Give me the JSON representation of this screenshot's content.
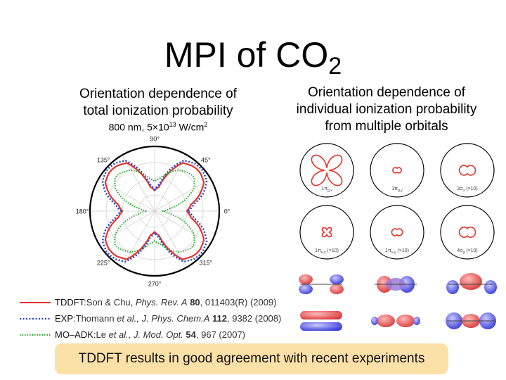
{
  "slide": {
    "title_main": "MPI of CO",
    "title_subscript": "2",
    "left_heading": [
      "Orientation dependence of",
      "total ionization probability"
    ],
    "conditions": {
      "pre": "800 nm, 5×10",
      "sup": "13",
      "post": " W/cm",
      "sup2": "2"
    },
    "right_heading": [
      "Orientation dependence of",
      "individual ionization probability",
      "from multiple orbitals"
    ],
    "summary": "TDDFT results in good agreement with recent experiments"
  },
  "legend": [
    {
      "label": "TDDFT:",
      "ref_pre": " Son & Chu, ",
      "journal": "Phys. Rev. A",
      "volume": " 80",
      "ref_post": ", 011403(R) (2009)",
      "color": "#e8332a",
      "dash": "solid"
    },
    {
      "label": "EXP:",
      "ref_pre": "Thomann ",
      "etal": "et al.",
      "journal": ", J. Phys. Chem.A",
      "volume": " 112",
      "ref_post": ", 9382 (2008)",
      "color": "#1f3fd0",
      "dash": "dotted"
    },
    {
      "label": "MO–ADK:",
      "ref_pre": " Le ",
      "etal": "et al.",
      "journal": ", J. Mod. Opt.",
      "volume": " 54",
      "ref_post": ", 967 (2007)",
      "color": "#22aa22",
      "dash": "dotted"
    }
  ],
  "chart_data": [
    {
      "type": "polar",
      "angle_labels": [
        {
          "angle": 90,
          "label": "90°"
        },
        {
          "angle": 45,
          "label": "45°"
        },
        {
          "angle": 135,
          "label": "135°"
        },
        {
          "angle": 180,
          "label": "180°"
        },
        {
          "angle": 0,
          "label": "0°"
        },
        {
          "angle": 225,
          "label": "225°"
        },
        {
          "angle": 270,
          "label": "270°"
        },
        {
          "angle": 315,
          "label": "315°"
        }
      ],
      "r_range": [
        0,
        1
      ],
      "grid": true,
      "series": [
        {
          "name": "TDDFT",
          "color": "#e8332a",
          "angles": [
            0,
            10,
            20,
            30,
            40,
            45,
            50,
            60,
            70,
            80,
            90
          ],
          "values": [
            0.5,
            0.57,
            0.74,
            0.88,
            0.92,
            0.92,
            0.91,
            0.86,
            0.62,
            0.38,
            0.32
          ]
        },
        {
          "name": "EXP",
          "color": "#1f3fd0",
          "angles": [
            0,
            10,
            20,
            30,
            40,
            45,
            50,
            60,
            70,
            80,
            90
          ],
          "values": [
            0.52,
            0.62,
            0.8,
            0.93,
            0.97,
            0.97,
            0.96,
            0.9,
            0.68,
            0.42,
            0.33
          ]
        },
        {
          "name": "MO–ADK",
          "color": "#22aa22",
          "angles": [
            0,
            10,
            20,
            30,
            40,
            45,
            50,
            60,
            70,
            80,
            90
          ],
          "values": [
            0.12,
            0.25,
            0.5,
            0.7,
            0.8,
            0.8,
            0.78,
            0.73,
            0.63,
            0.52,
            0.46
          ]
        }
      ]
    },
    {
      "type": "polar",
      "panels": [
        {
          "label_main": "1π",
          "label_sub": "g,x",
          "label_extra": "",
          "shape": "butterfly",
          "size": 0.8,
          "pinch": 0.18
        },
        {
          "label_main": "1π",
          "label_sub": "g,y",
          "label_extra": "",
          "shape": "lobes0",
          "size": 0.16,
          "pinch": 0.45
        },
        {
          "label_main": "3σ",
          "label_sub": "u",
          "label_extra": " (×10)",
          "shape": "lobes0",
          "size": 0.3,
          "pinch": 0.4
        },
        {
          "label_main": "1π",
          "label_sub": "u,x",
          "label_extra": " (×10)",
          "shape": "butterfly",
          "size": 0.28,
          "pinch": 0.55
        },
        {
          "label_main": "1π",
          "label_sub": "u,y",
          "label_extra": " (×10)",
          "shape": "lobes0",
          "size": 0.2,
          "pinch": 0.5
        },
        {
          "label_main": "4σ",
          "label_sub": "g",
          "label_extra": " (×10)",
          "shape": "lobes0",
          "size": 0.3,
          "pinch": 0.45
        }
      ]
    }
  ],
  "orbital_images": [
    {
      "style": "vertical-lobes"
    },
    {
      "style": "center-axial"
    },
    {
      "style": "corner-lobes"
    },
    {
      "style": "bands"
    },
    {
      "style": "side-lobes"
    },
    {
      "style": "ring-lobes"
    }
  ]
}
